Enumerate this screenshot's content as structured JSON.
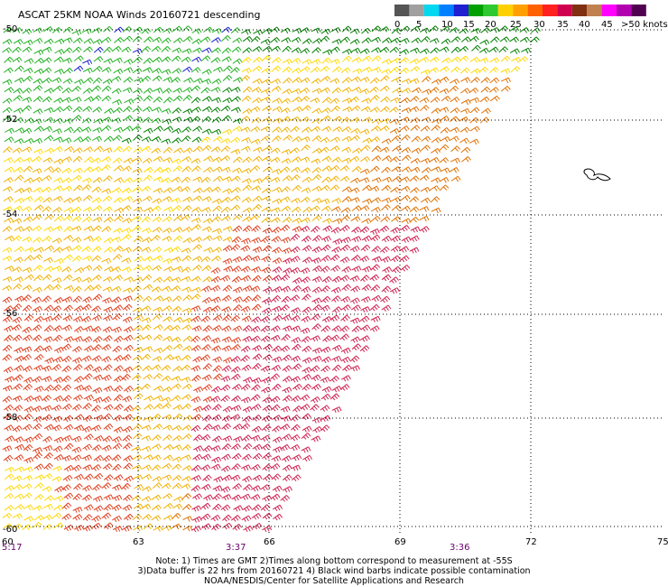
{
  "title": "ASCAT 25KM NOAA Winds 20160721 descending",
  "legend": {
    "colors": [
      "#555555",
      "#a0a0a0",
      "#00d8f0",
      "#0080ff",
      "#2020d0",
      "#00a000",
      "#30c830",
      "#ffd000",
      "#ffa000",
      "#ff6000",
      "#ff2020",
      "#d00050",
      "#803010",
      "#c08050",
      "#ff00ff",
      "#b000b0",
      "#500050"
    ],
    "ticks": [
      "0",
      "5",
      "10",
      "15",
      "20",
      "25",
      "30",
      "35",
      "40",
      "45",
      ">50 knots"
    ]
  },
  "lat_labels": [
    "-50",
    "-52",
    "-54",
    "-56",
    "-58",
    "-60"
  ],
  "lon_labels": [
    "60",
    "63",
    "66",
    "69",
    "72",
    "75"
  ],
  "times": [
    "5:17",
    "3:37",
    "3:36"
  ],
  "notes": {
    "line1": "Note: 1) Times are GMT 2)Times along bottom correspond to measurement at -55S",
    "line2": "3)Data buffer is 22 hrs from 20160721 4) Black wind barbs indicate possible contamination",
    "line3": "NOAA/NESDIS/Center for Satellite Applications and Research"
  },
  "barb_palette": {
    "blue": "#2020d0",
    "dark_green": "#008000",
    "green": "#20b020",
    "yellow": "#ffd800",
    "gold": "#f0b000",
    "orange": "#e07000",
    "red_orange": "#e04020",
    "crimson": "#d02050"
  }
}
